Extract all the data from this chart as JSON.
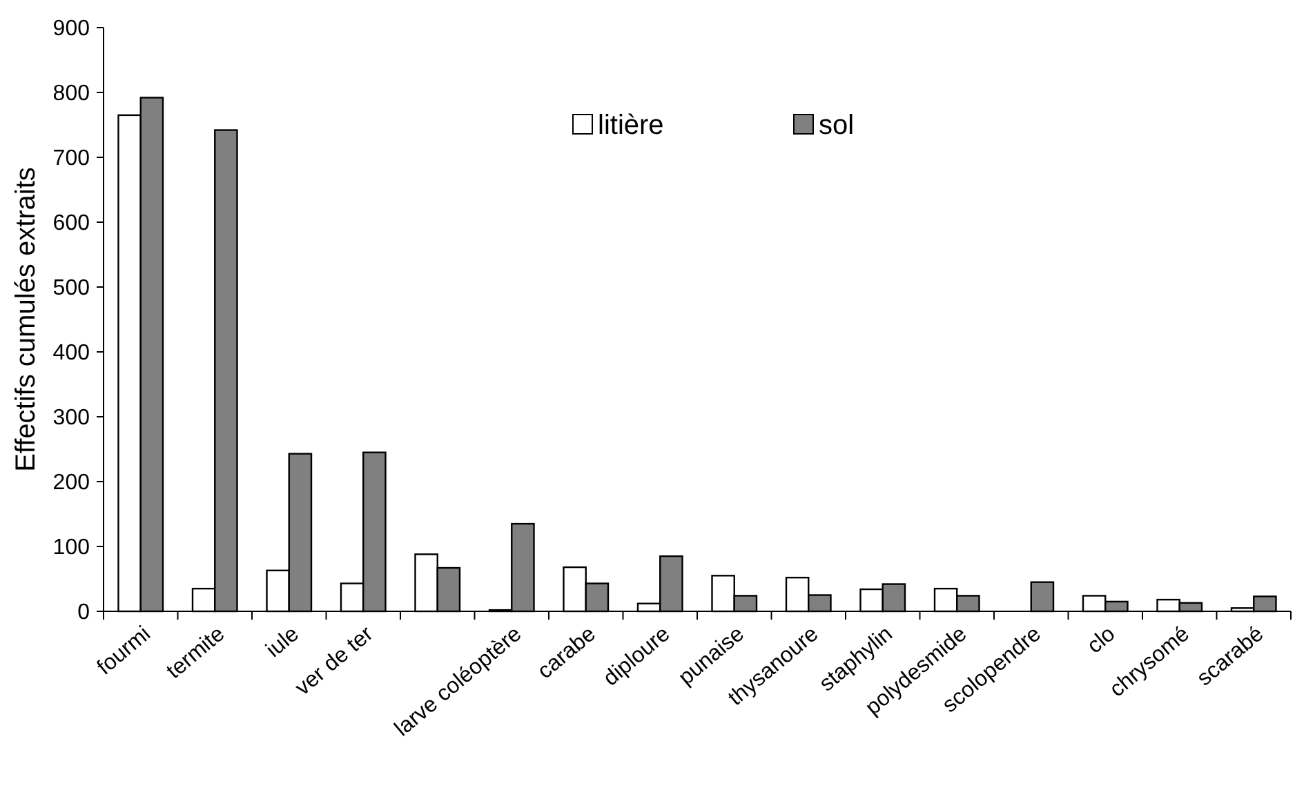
{
  "chart_data": {
    "type": "bar",
    "ylabel": "Effectifs cumulés extraits",
    "categories": [
      "fourmi",
      "termite",
      "iule",
      "ver de ter",
      null,
      "larve coléoptère",
      "carabe",
      "diploure",
      "punaise",
      "thysanoure",
      "staphylin",
      "polydesmide",
      "scolopendre",
      "clo",
      "chrysomé",
      "scarabé"
    ],
    "series": [
      {
        "name": "litière",
        "color": "#ffffff",
        "values": [
          765,
          35,
          63,
          43,
          88,
          2,
          68,
          12,
          55,
          52,
          34,
          35,
          0,
          24,
          18,
          5
        ]
      },
      {
        "name": "sol",
        "color": "#808080",
        "values": [
          792,
          742,
          243,
          245,
          67,
          135,
          43,
          85,
          24,
          25,
          42,
          24,
          45,
          15,
          13,
          23
        ]
      }
    ],
    "ylim": [
      0,
      900
    ],
    "yticks": [
      0,
      100,
      200,
      300,
      400,
      500,
      600,
      700,
      800,
      900
    ],
    "grid": false,
    "legend": "top right"
  }
}
